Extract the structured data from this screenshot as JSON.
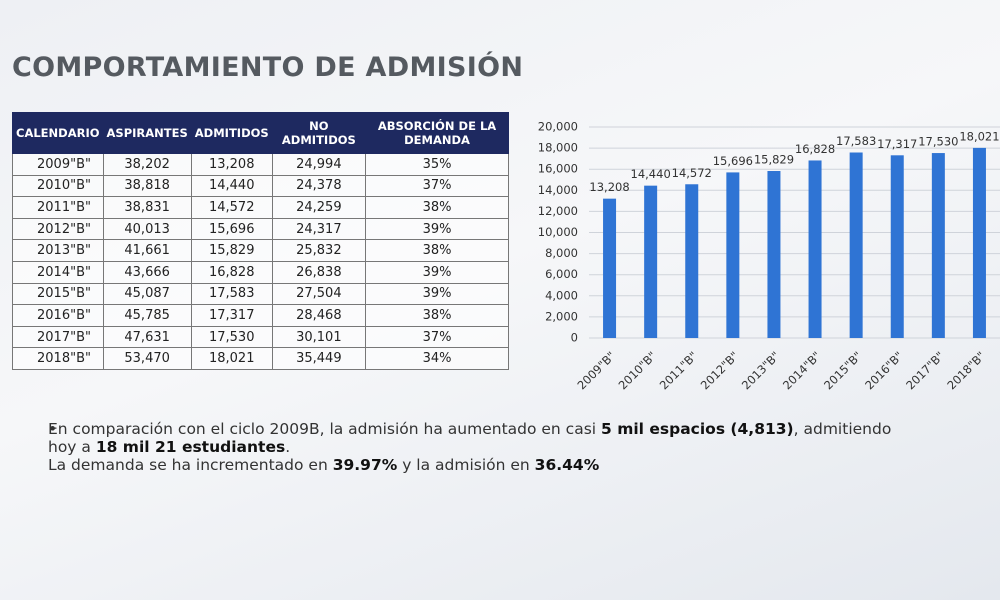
{
  "header": {
    "title": "COMPORTAMIENTO DE ADMISIÓN"
  },
  "table": {
    "columns": [
      "CALENDARIO",
      "ASPIRANTES",
      "ADMITIDOS",
      "NO ADMITIDOS",
      "ABSORCIÓN DE LA DEMANDA"
    ],
    "rows": [
      [
        "2009\"B\"",
        "38,202",
        "13,208",
        "24,994",
        "35%"
      ],
      [
        "2010\"B\"",
        "38,818",
        "14,440",
        "24,378",
        "37%"
      ],
      [
        "2011\"B\"",
        "38,831",
        "14,572",
        "24,259",
        "38%"
      ],
      [
        "2012\"B\"",
        "40,013",
        "15,696",
        "24,317",
        "39%"
      ],
      [
        "2013\"B\"",
        "41,661",
        "15,829",
        "25,832",
        "38%"
      ],
      [
        "2014\"B\"",
        "43,666",
        "16,828",
        "26,838",
        "39%"
      ],
      [
        "2015\"B\"",
        "45,087",
        "17,583",
        "27,504",
        "39%"
      ],
      [
        "2016\"B\"",
        "45,785",
        "17,317",
        "28,468",
        "38%"
      ],
      [
        "2017\"B\"",
        "47,631",
        "17,530",
        "30,101",
        "37%"
      ],
      [
        "2018\"B\"",
        "53,470",
        "18,021",
        "35,449",
        "34%"
      ]
    ]
  },
  "chart_data": {
    "type": "bar",
    "categories": [
      "2009\"B\"",
      "2010\"B\"",
      "2011\"B\"",
      "2012\"B\"",
      "2013\"B\"",
      "2014\"B\"",
      "2015\"B\"",
      "2016\"B\"",
      "2017\"B\"",
      "2018\"B\""
    ],
    "values": [
      13208,
      14440,
      14572,
      15696,
      15829,
      16828,
      17583,
      17317,
      17530,
      18021
    ],
    "value_labels": [
      "13,208",
      "14,440",
      "14,572",
      "15,696",
      "15,829",
      "16,828",
      "17,583",
      "17,317",
      "17,530",
      "18,021"
    ],
    "color": "#2f74d4",
    "ylim": [
      0,
      20000
    ],
    "yticks": [
      0,
      {
        "value": 2000,
        "label": "2,000"
      },
      {
        "value": 4000,
        "label": "4,000"
      },
      {
        "value": 6000,
        "label": "6,000"
      },
      {
        "value": 8000,
        "label": "8,000"
      },
      {
        "value": 10000,
        "label": "10,000"
      },
      {
        "value": 12000,
        "label": "12,000"
      },
      {
        "value": 14000,
        "label": "14,000"
      },
      {
        "value": 16000,
        "label": "16,000"
      },
      {
        "value": 18000,
        "label": "18,000"
      },
      {
        "value": 20000,
        "label": "20,000"
      }
    ],
    "grid": true
  },
  "bullets": [
    [
      {
        "text": "En comparación con el ciclo 2009B, la admisión ha aumentado en casi ",
        "bold": false
      },
      {
        "text": "5 mil espacios (4,813)",
        "bold": true
      },
      {
        "text": ", admitiendo hoy a ",
        "bold": false
      },
      {
        "text": "18 mil 21 estudiantes",
        "bold": true
      },
      {
        "text": ".",
        "bold": false
      }
    ],
    [
      {
        "text": "La demanda se ha incrementado en ",
        "bold": false
      },
      {
        "text": "39.97%",
        "bold": true
      },
      {
        "text": " y la admisión en ",
        "bold": false
      },
      {
        "text": "36.44%",
        "bold": true
      }
    ]
  ]
}
